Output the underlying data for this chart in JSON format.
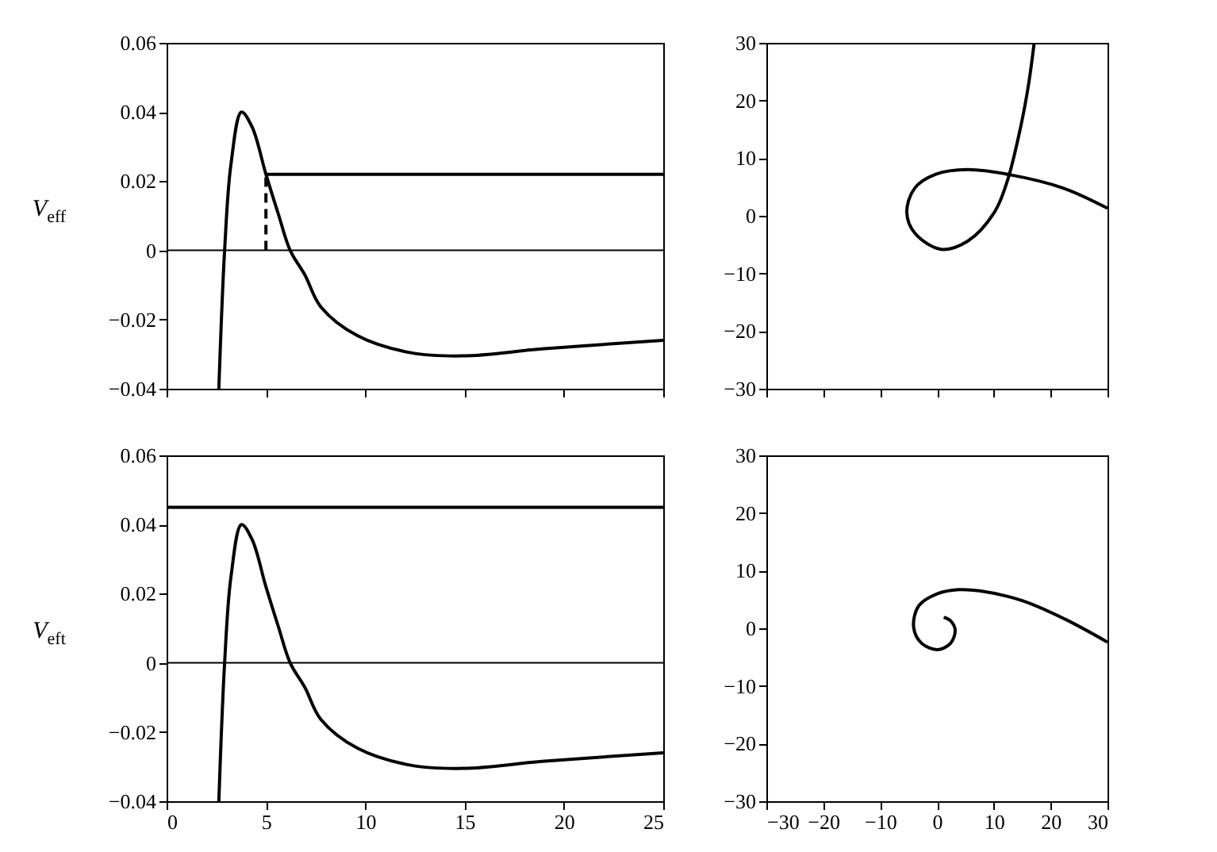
{
  "chart_data": [
    {
      "type": "line",
      "ylabel": "V$_{eff}$",
      "xlim": [
        0,
        25
      ],
      "ylim": [
        -0.04,
        0.06
      ],
      "xticks": [
        0,
        5,
        10,
        15,
        20,
        25
      ],
      "yticks": [
        -0.04,
        -0.02,
        0,
        0.02,
        0.04,
        0.06
      ],
      "tick_labels": "y",
      "ref_lines": [
        {
          "axis": "y",
          "value": 0,
          "color": "#000000"
        }
      ],
      "series": [
        {
          "color": "#000000",
          "x": [
            2.63,
            2.92,
            3.24,
            3.77,
            4.31,
            5.0,
            5.63,
            6.22,
            6.97,
            7.76,
            9.62,
            12.29,
            14.95,
            18.9,
            25
          ],
          "values": [
            -0.04,
            0,
            0.0249,
            0.04,
            0.0356,
            0.022,
            0.0104,
            0,
            -0.0072,
            -0.0163,
            -0.0247,
            -0.0296,
            -0.0305,
            -0.0285,
            -0.026
          ]
        },
        {
          "color": "#000000",
          "x": [
            5,
            25
          ],
          "values": [
            0.022,
            0.022
          ]
        },
        {
          "color": "#000000",
          "line_style": "dashed",
          "x": [
            5,
            5
          ],
          "values": [
            0,
            0.022
          ]
        }
      ]
    },
    {
      "type": "line",
      "xlim": [
        -30,
        30
      ],
      "ylim": [
        -30,
        30
      ],
      "xticks": [
        -30,
        -20,
        -10,
        0,
        10,
        20,
        30
      ],
      "yticks": [
        -30,
        -20,
        -10,
        0,
        10,
        20,
        30
      ],
      "tick_labels": "y",
      "series": [
        {
          "color": "#000000",
          "x": [
            30,
            22.2,
            12.9,
            5.4,
            -0.2,
            -3.9,
            -5.3,
            -3.9,
            0.7,
            5.4,
            10.1,
            12.4,
            14.7,
            16.1,
            17.1
          ],
          "values": [
            1.3,
            4.8,
            7.1,
            8.0,
            7.2,
            4.8,
            0.6,
            -3.0,
            -5.8,
            -4.4,
            0.6,
            6.1,
            15.3,
            22.7,
            30
          ]
        }
      ]
    },
    {
      "type": "line",
      "ylabel": "V$_{eft}$",
      "xlim": [
        0,
        25
      ],
      "ylim": [
        -0.04,
        0.06
      ],
      "xticks": [
        0,
        5,
        10,
        15,
        20,
        25
      ],
      "yticks": [
        -0.04,
        -0.02,
        0,
        0.02,
        0.04,
        0.06
      ],
      "ref_lines": [
        {
          "axis": "y",
          "value": 0,
          "color": "#000000"
        }
      ],
      "series": [
        {
          "color": "#000000",
          "x": [
            2.63,
            2.92,
            3.24,
            3.77,
            4.31,
            5.0,
            5.63,
            6.22,
            6.97,
            7.76,
            9.62,
            12.29,
            14.95,
            18.9,
            25
          ],
          "values": [
            -0.04,
            0,
            0.0249,
            0.04,
            0.0356,
            0.022,
            0.0104,
            0,
            -0.0072,
            -0.0163,
            -0.0247,
            -0.0296,
            -0.0305,
            -0.0285,
            -0.026
          ]
        },
        {
          "color": "#000000",
          "x": [
            0,
            25
          ],
          "values": [
            0.045,
            0.045
          ]
        }
      ]
    },
    {
      "type": "line",
      "xlim": [
        -30,
        30
      ],
      "ylim": [
        -30,
        30
      ],
      "xticks": [
        -30,
        -20,
        -10,
        0,
        10,
        20,
        30
      ],
      "yticks": [
        -30,
        -20,
        -10,
        0,
        10,
        20,
        30
      ],
      "series": [
        {
          "color": "#000000",
          "x": [
            30,
            22.5,
            15.0,
            7.5,
            3.8,
            0.1,
            -3.2,
            -4.1,
            -2.7,
            0.1,
            2.4,
            3.2,
            2.4,
            1.2
          ],
          "values": [
            -2.4,
            1.6,
            4.8,
            6.5,
            6.7,
            6.0,
            3.9,
            0.2,
            -2.6,
            -3.7,
            -2.6,
            -0.3,
            1.3,
            1.9
          ]
        }
      ]
    }
  ]
}
